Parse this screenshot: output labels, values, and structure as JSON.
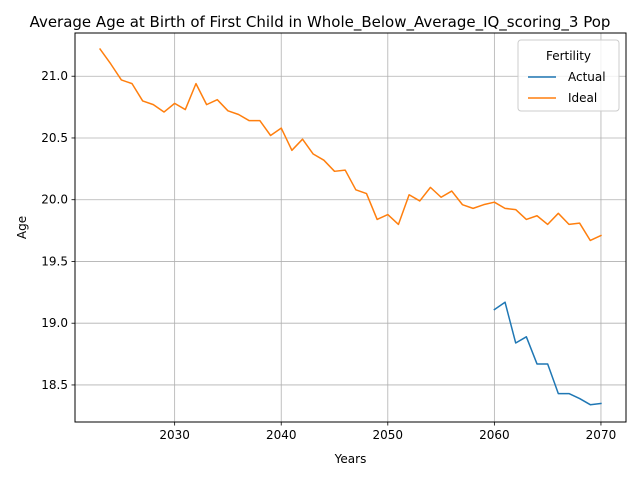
{
  "chart_data": {
    "type": "line",
    "title": "Average Age at Birth of First Child in Whole_Below_Average_IQ_scoring_3 Pop",
    "xlabel": "Years",
    "ylabel": "Age",
    "xlim": [
      2020.65,
      2072.35
    ],
    "ylim": [
      18.2,
      21.35
    ],
    "xticks": [
      2030,
      2040,
      2050,
      2060,
      2070
    ],
    "yticks": [
      18.5,
      19.0,
      19.5,
      20.0,
      20.5,
      21.0
    ],
    "xtick_labels": [
      "2030",
      "2040",
      "2050",
      "2060",
      "2070"
    ],
    "ytick_labels": [
      "18.5",
      "19.0",
      "19.5",
      "20.0",
      "20.5",
      "21.0"
    ],
    "grid": true,
    "legend": {
      "title": "Fertility",
      "placement": "top-right"
    },
    "series": [
      {
        "name": "Actual",
        "color": "#1f77b4",
        "x": [
          2060,
          2061,
          2062,
          2063,
          2064,
          2065,
          2066,
          2067,
          2068,
          2069,
          2070
        ],
        "y": [
          19.11,
          19.17,
          18.84,
          18.89,
          18.67,
          18.67,
          18.43,
          18.43,
          18.39,
          18.34,
          18.35
        ]
      },
      {
        "name": "Ideal",
        "color": "#ff7f0e",
        "x": [
          2023,
          2024,
          2025,
          2026,
          2027,
          2028,
          2029,
          2030,
          2031,
          2032,
          2033,
          2034,
          2035,
          2036,
          2037,
          2038,
          2039,
          2040,
          2041,
          2042,
          2043,
          2044,
          2045,
          2046,
          2047,
          2048,
          2049,
          2050,
          2051,
          2052,
          2053,
          2054,
          2055,
          2056,
          2057,
          2058,
          2059,
          2060,
          2061,
          2062,
          2063,
          2064,
          2065,
          2066,
          2067,
          2068,
          2069,
          2070
        ],
        "y": [
          21.22,
          21.1,
          20.97,
          20.94,
          20.8,
          20.77,
          20.71,
          20.78,
          20.73,
          20.94,
          20.77,
          20.81,
          20.72,
          20.69,
          20.64,
          20.64,
          20.52,
          20.58,
          20.4,
          20.49,
          20.37,
          20.32,
          20.23,
          20.24,
          20.08,
          20.05,
          19.84,
          19.88,
          19.8,
          20.04,
          19.99,
          20.1,
          20.02,
          20.07,
          19.96,
          19.93,
          19.96,
          19.98,
          19.93,
          19.92,
          19.84,
          19.87,
          19.8,
          19.89,
          19.8,
          19.81,
          19.67,
          19.71
        ]
      }
    ]
  }
}
